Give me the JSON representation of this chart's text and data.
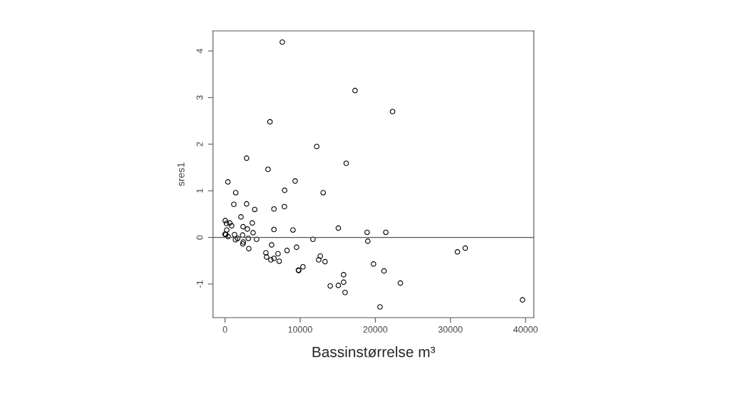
{
  "chart_data": {
    "type": "scatter",
    "xlabel": "Bassinstørrelse m³",
    "ylabel": "sres1",
    "xlim": [
      -1600,
      41100
    ],
    "ylim": [
      -1.72,
      4.43
    ],
    "xticks": [
      0,
      10000,
      20000,
      30000,
      40000
    ],
    "yticks": [
      -1,
      0,
      1,
      2,
      3,
      4
    ],
    "marker": "circle",
    "grid": false,
    "legend": false,
    "ref_lines": [
      {
        "axis": "y",
        "value": 0,
        "color": "#555555"
      }
    ],
    "series": [
      {
        "color": "#000000",
        "x": [
          7620,
          17300,
          5980,
          12200,
          2870,
          5720,
          16130,
          380,
          9330,
          7930,
          1420,
          13060,
          22300,
          1170,
          2870,
          3950,
          6510,
          7900,
          2120,
          30,
          630,
          190,
          880,
          3630,
          2400,
          2970,
          220,
          6510,
          9040,
          15080,
          3730,
          0,
          100,
          1260,
          410,
          2340,
          3100,
          4200,
          1390,
          1670,
          11700,
          2430,
          2370,
          6200,
          9520,
          3160,
          8250,
          5440,
          5530,
          6100,
          6510,
          7050,
          7210,
          12680,
          12460,
          13310,
          10370,
          9770,
          9800,
          15780,
          15780,
          14000,
          15080,
          15970,
          18910,
          21400,
          19000,
          19760,
          21160,
          23340,
          20620,
          30930,
          31970,
          39590
        ],
        "values": [
          4.19,
          3.15,
          2.48,
          1.95,
          1.7,
          1.46,
          1.59,
          1.19,
          1.21,
          1.01,
          0.96,
          0.96,
          2.7,
          0.71,
          0.72,
          0.6,
          0.61,
          0.66,
          0.44,
          0.36,
          0.31,
          0.3,
          0.25,
          0.31,
          0.23,
          0.18,
          0.16,
          0.17,
          0.16,
          0.2,
          0.1,
          0.07,
          0.06,
          0.06,
          0.02,
          0.05,
          -0.02,
          -0.04,
          -0.05,
          -0.02,
          -0.04,
          -0.1,
          -0.14,
          -0.16,
          -0.21,
          -0.24,
          -0.28,
          -0.33,
          -0.42,
          -0.48,
          -0.45,
          -0.35,
          -0.51,
          -0.4,
          -0.48,
          -0.52,
          -0.63,
          -0.7,
          -0.71,
          -0.8,
          -0.96,
          -1.04,
          -1.03,
          -1.18,
          0.11,
          0.11,
          -0.08,
          -0.57,
          -0.72,
          -0.98,
          -1.49,
          -0.31,
          -0.23,
          -1.34
        ]
      }
    ]
  }
}
